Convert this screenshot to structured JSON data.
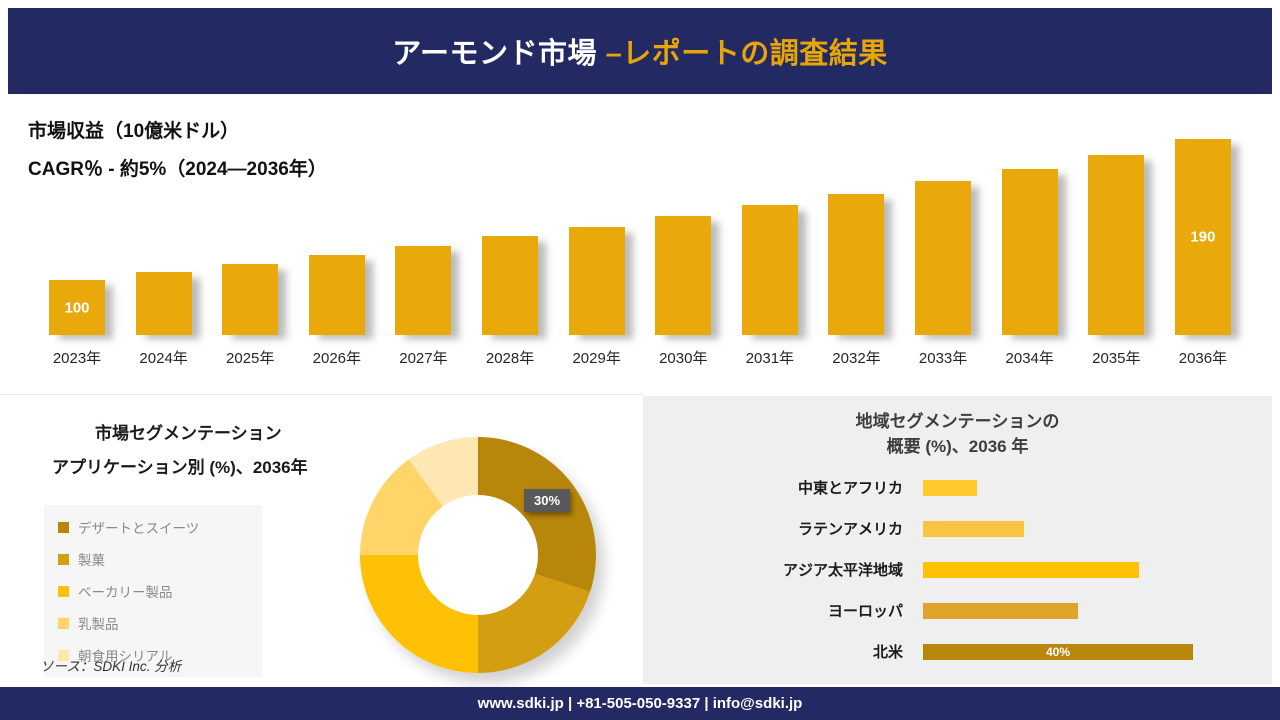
{
  "header": {
    "title_main": "アーモンド市場 ",
    "title_accent": "–レポートの調査結果"
  },
  "colors": {
    "navy": "#232a63",
    "accent_gold": "#e8a606",
    "bar_gold": "#e9a90b",
    "callout_gray": "#595959"
  },
  "chart_data": [
    {
      "id": "market_revenue",
      "type": "bar",
      "title": "市場収益（10億米ドル）",
      "subtitle": "CAGR％ - 約5%（2024―2036年）",
      "categories": [
        "2023年",
        "2024年",
        "2025年",
        "2026年",
        "2027年",
        "2028年",
        "2029年",
        "2030年",
        "2031年",
        "2032年",
        "2033年",
        "2034年",
        "2035年",
        "2036年"
      ],
      "values": [
        100,
        105,
        110,
        116,
        122,
        128,
        134,
        141,
        148,
        155,
        163,
        171,
        180,
        190
      ],
      "point_labels": {
        "2023年": "100",
        "2036年": "190"
      },
      "bar_color": "#e9a90b",
      "ylim": [
        65,
        190
      ],
      "grid": false,
      "legend_position": "none"
    },
    {
      "id": "application_segmentation",
      "type": "pie",
      "title_lines": [
        "市場セグメンテーション",
        "アプリケーション別 (%)、2036年"
      ],
      "segments": [
        {
          "label": "デザートとスイーツ",
          "value": 30,
          "color": "#b8860b"
        },
        {
          "label": "製菓",
          "value": 20,
          "color": "#d49e12"
        },
        {
          "label": "ベーカリー製品",
          "value": 25,
          "color": "#ffc105"
        },
        {
          "label": "乳製品",
          "value": 15,
          "color": "#ffd56a"
        },
        {
          "label": "朝食用シリアル",
          "value": 10,
          "color": "#ffe7b3"
        }
      ],
      "donut": true,
      "callout_label": "30%",
      "legend_position": "left"
    },
    {
      "id": "regional_segmentation",
      "type": "bar",
      "orientation": "horizontal",
      "title_lines": [
        "地域セグメンテーションの",
        "概要 (%)、2036 年"
      ],
      "categories": [
        "中東とアフリカ",
        "ラテンアメリカ",
        "アジア太平洋地域",
        "ヨーロッパ",
        "北米"
      ],
      "values": [
        8,
        15,
        32,
        23,
        40
      ],
      "bar_colors": [
        "#ffc92b",
        "#f9c43f",
        "#ffc105",
        "#dfa42a",
        "#b8860b"
      ],
      "value_labels": {
        "北米": "40%"
      },
      "xlim": [
        0,
        40
      ],
      "grid": false,
      "legend_position": "none"
    }
  ],
  "source_note": "ソース：SDKI Inc. 分析",
  "footer": {
    "contact": "www.sdki.jp | +81-505-050-9337 | info@sdki.jp"
  }
}
